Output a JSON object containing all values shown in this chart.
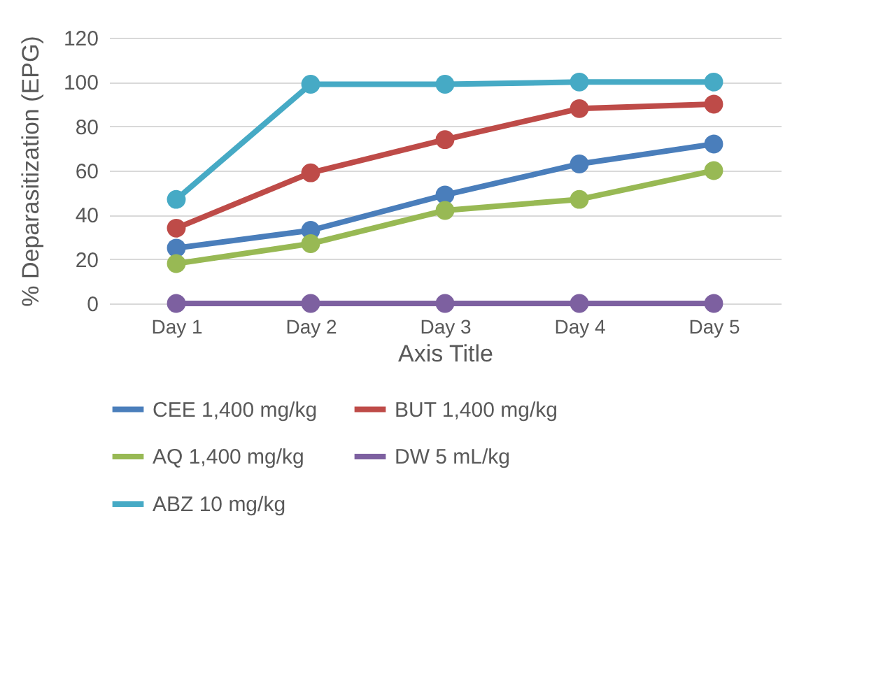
{
  "chart_data": {
    "type": "line",
    "xlabel": "Axis Title",
    "ylabel": "% Deparasitization (EPG)",
    "categories": [
      "Day 1",
      "Day 2",
      "Day 3",
      "Day 4",
      "Day 5"
    ],
    "series": [
      {
        "name": "CEE 1,400 mg/kg",
        "color": "#4a7ebb",
        "values": [
          25,
          33,
          49,
          63,
          72
        ]
      },
      {
        "name": "BUT 1,400 mg/kg",
        "color": "#be4b48",
        "values": [
          34,
          59,
          74,
          88,
          90
        ]
      },
      {
        "name": "AQ     1,400 mg/kg",
        "color": "#98b954",
        "values": [
          18,
          27,
          42,
          47,
          60
        ]
      },
      {
        "name": "DW 5 mL/kg",
        "color": "#7d60a0",
        "values": [
          0,
          0,
          0,
          0,
          0
        ]
      },
      {
        "name": "ABZ 10 mg/kg",
        "color": "#46aac5",
        "values": [
          47,
          99,
          99,
          100,
          100
        ]
      }
    ],
    "ylim": [
      0,
      120
    ],
    "yticks": [
      0,
      20,
      40,
      60,
      80,
      100,
      120
    ],
    "grid": "y",
    "legend": "bottom",
    "marker": "circle",
    "line_style": "solid"
  }
}
